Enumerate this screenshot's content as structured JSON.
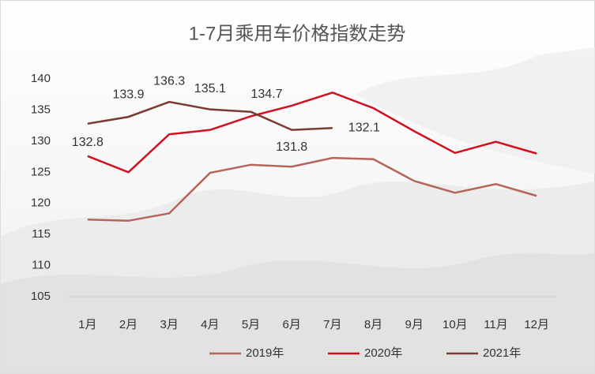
{
  "chart_data": {
    "type": "line",
    "title": "1-7月乘用车价格指数走势",
    "categories": [
      "1月",
      "2月",
      "3月",
      "4月",
      "5月",
      "6月",
      "7月",
      "8月",
      "9月",
      "10月",
      "11月",
      "12月"
    ],
    "series": [
      {
        "name": "2019年",
        "color": "#b5655a",
        "values": [
          117.4,
          117.2,
          118.4,
          124.9,
          126.2,
          125.9,
          127.3,
          127.1,
          123.6,
          121.7,
          123.1,
          121.2
        ]
      },
      {
        "name": "2020年",
        "color": "#d0101e",
        "values": [
          127.6,
          125.0,
          131.1,
          131.8,
          134.0,
          135.7,
          137.8,
          135.3,
          131.6,
          128.1,
          129.9,
          128.0
        ]
      },
      {
        "name": "2021年",
        "color": "#7b3a33",
        "values": [
          132.8,
          133.9,
          136.3,
          135.1,
          134.7,
          131.8,
          132.1,
          null,
          null,
          null,
          null,
          null
        ],
        "data_labels": true
      }
    ],
    "ylim": [
      105,
      140
    ],
    "yticks": [
      105,
      110,
      115,
      120,
      125,
      130,
      135,
      140
    ],
    "grid": false,
    "legend": "bottom"
  }
}
